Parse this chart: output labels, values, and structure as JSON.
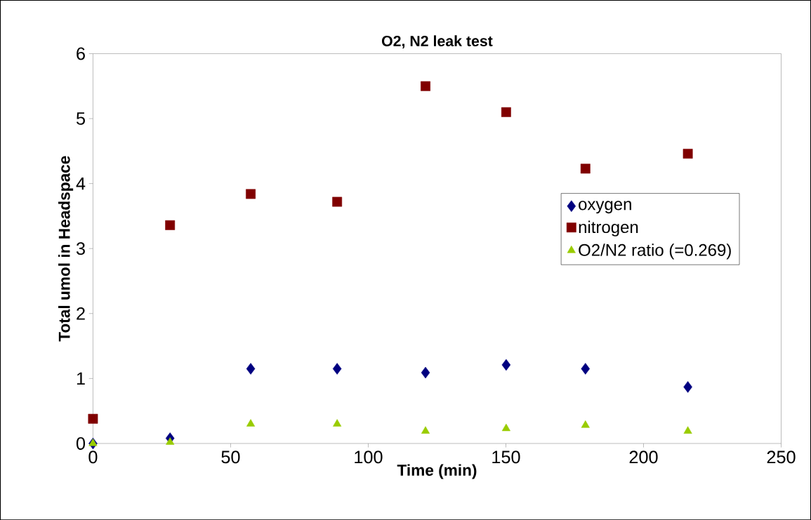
{
  "chart_data": {
    "type": "scatter",
    "title": "O2, N2 leak test",
    "xlabel": "Time (min)",
    "ylabel": "Total umol in Headspace",
    "xlim": [
      0,
      250
    ],
    "xticks": [
      0,
      50,
      100,
      150,
      200,
      250
    ],
    "ylim": [
      0,
      6
    ],
    "yticks": [
      0,
      1,
      2,
      3,
      4,
      5,
      6
    ],
    "grid": false,
    "legend": "right",
    "series": [
      {
        "name": "oxygen",
        "color": "#000080",
        "marker": "diamond",
        "x": [
          0,
          28,
          57.3,
          88.7,
          120.8,
          150.1,
          178.9,
          216.1
        ],
        "values": [
          0,
          0.08,
          1.15,
          1.15,
          1.09,
          1.21,
          1.15,
          0.87
        ]
      },
      {
        "name": "nitrogen",
        "color": "#800000",
        "marker": "square",
        "x": [
          0,
          28,
          57.3,
          88.7,
          120.8,
          150.1,
          178.9,
          216.1
        ],
        "values": [
          0.38,
          3.36,
          3.84,
          3.72,
          5.5,
          5.1,
          4.23,
          4.46
        ]
      },
      {
        "name": "O2/N2 ratio (=0.269)",
        "color": "#99cc00",
        "marker": "triangle",
        "x": [
          0,
          28,
          57.3,
          88.7,
          120.8,
          150.1,
          178.9,
          216.1
        ],
        "values": [
          0.0,
          0.02,
          0.3,
          0.3,
          0.19,
          0.23,
          0.28,
          0.19
        ]
      }
    ]
  }
}
